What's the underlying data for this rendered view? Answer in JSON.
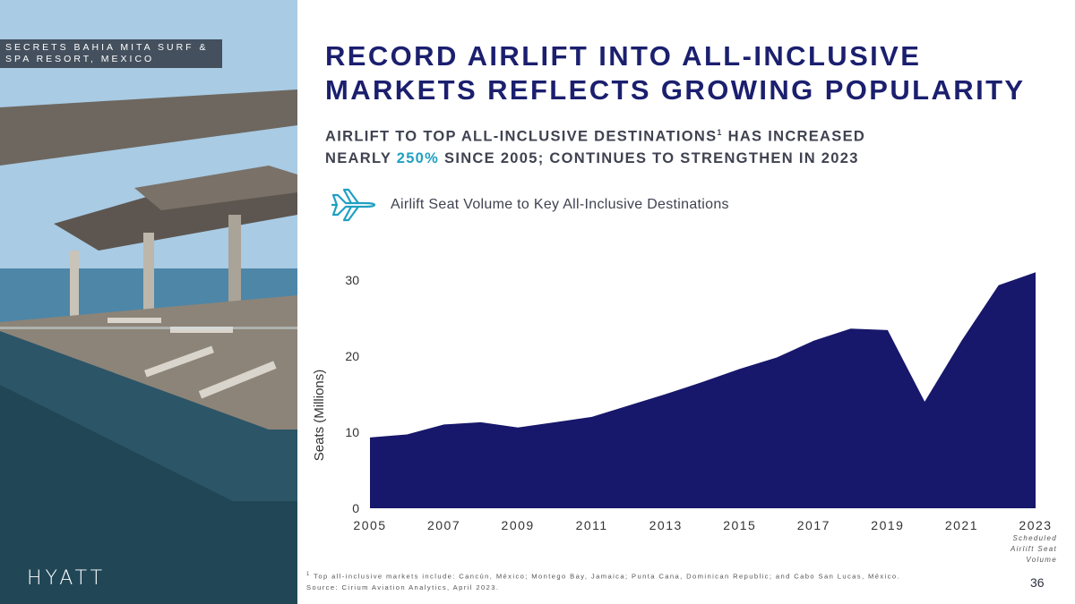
{
  "photo": {
    "caption": "SECRETS BAHIA MITA SURF &\nSPA RESORT, MEXICO",
    "logo": "HYATT"
  },
  "title": "RECORD AIRLIFT INTO ALL-INCLUSIVE MARKETS REFLECTS GROWING POPULARITY",
  "subtitle": {
    "line1_pre": "AIRLIFT TO TOP ALL-INCLUSIVE  DESTINATIONS",
    "footnote_ref": "1",
    "line1_post": "  HAS INCREASED",
    "line2_pre": "NEARLY  ",
    "highlight": "250%",
    "line2_post": " SINCE  2005; CONTINUES  TO STRENGTHEN  IN 2023"
  },
  "colors": {
    "title": "#1b1f6e",
    "accent": "#1fa0c2",
    "area": "#17176b",
    "icon": "plane-icon"
  },
  "chart_data": {
    "type": "area",
    "title": "Airlift  Seat Volume to Key All-Inclusive  Destinations",
    "ylabel": "Seats  (Millions)",
    "xlabel": "",
    "ylim": [
      0,
      30
    ],
    "yticks": [
      0,
      10,
      20,
      30
    ],
    "xticks": [
      2005,
      2007,
      2009,
      2011,
      2013,
      2015,
      2017,
      2019,
      2021,
      2023
    ],
    "x": [
      2005,
      2006,
      2007,
      2008,
      2009,
      2010,
      2011,
      2012,
      2013,
      2014,
      2015,
      2016,
      2017,
      2018,
      2019,
      2020,
      2021,
      2022,
      2023
    ],
    "series": [
      {
        "name": "Seats (Millions)",
        "values": [
          9.3,
          9.7,
          11.0,
          11.3,
          10.6,
          11.3,
          12.0,
          13.5,
          15.0,
          16.6,
          18.3,
          19.8,
          22.0,
          23.6,
          23.4,
          14.0,
          22.0,
          29.3,
          31.0
        ]
      }
    ],
    "annotation": "Scheduled\nAirlift  Seat\nVolume",
    "grid": false
  },
  "footnote": {
    "ref": "1",
    "line1": " Top  all-inclusive   markets   include:  Cancún,   México;  Montego   Bay,  Jamaica;  Punta  Cana,   Dominican   Republic;   and  Cabo  San  Lucas,  México.",
    "line2": "Source:   Cirium  Aviation  Analytics,  April  2023."
  },
  "page_number": "36"
}
